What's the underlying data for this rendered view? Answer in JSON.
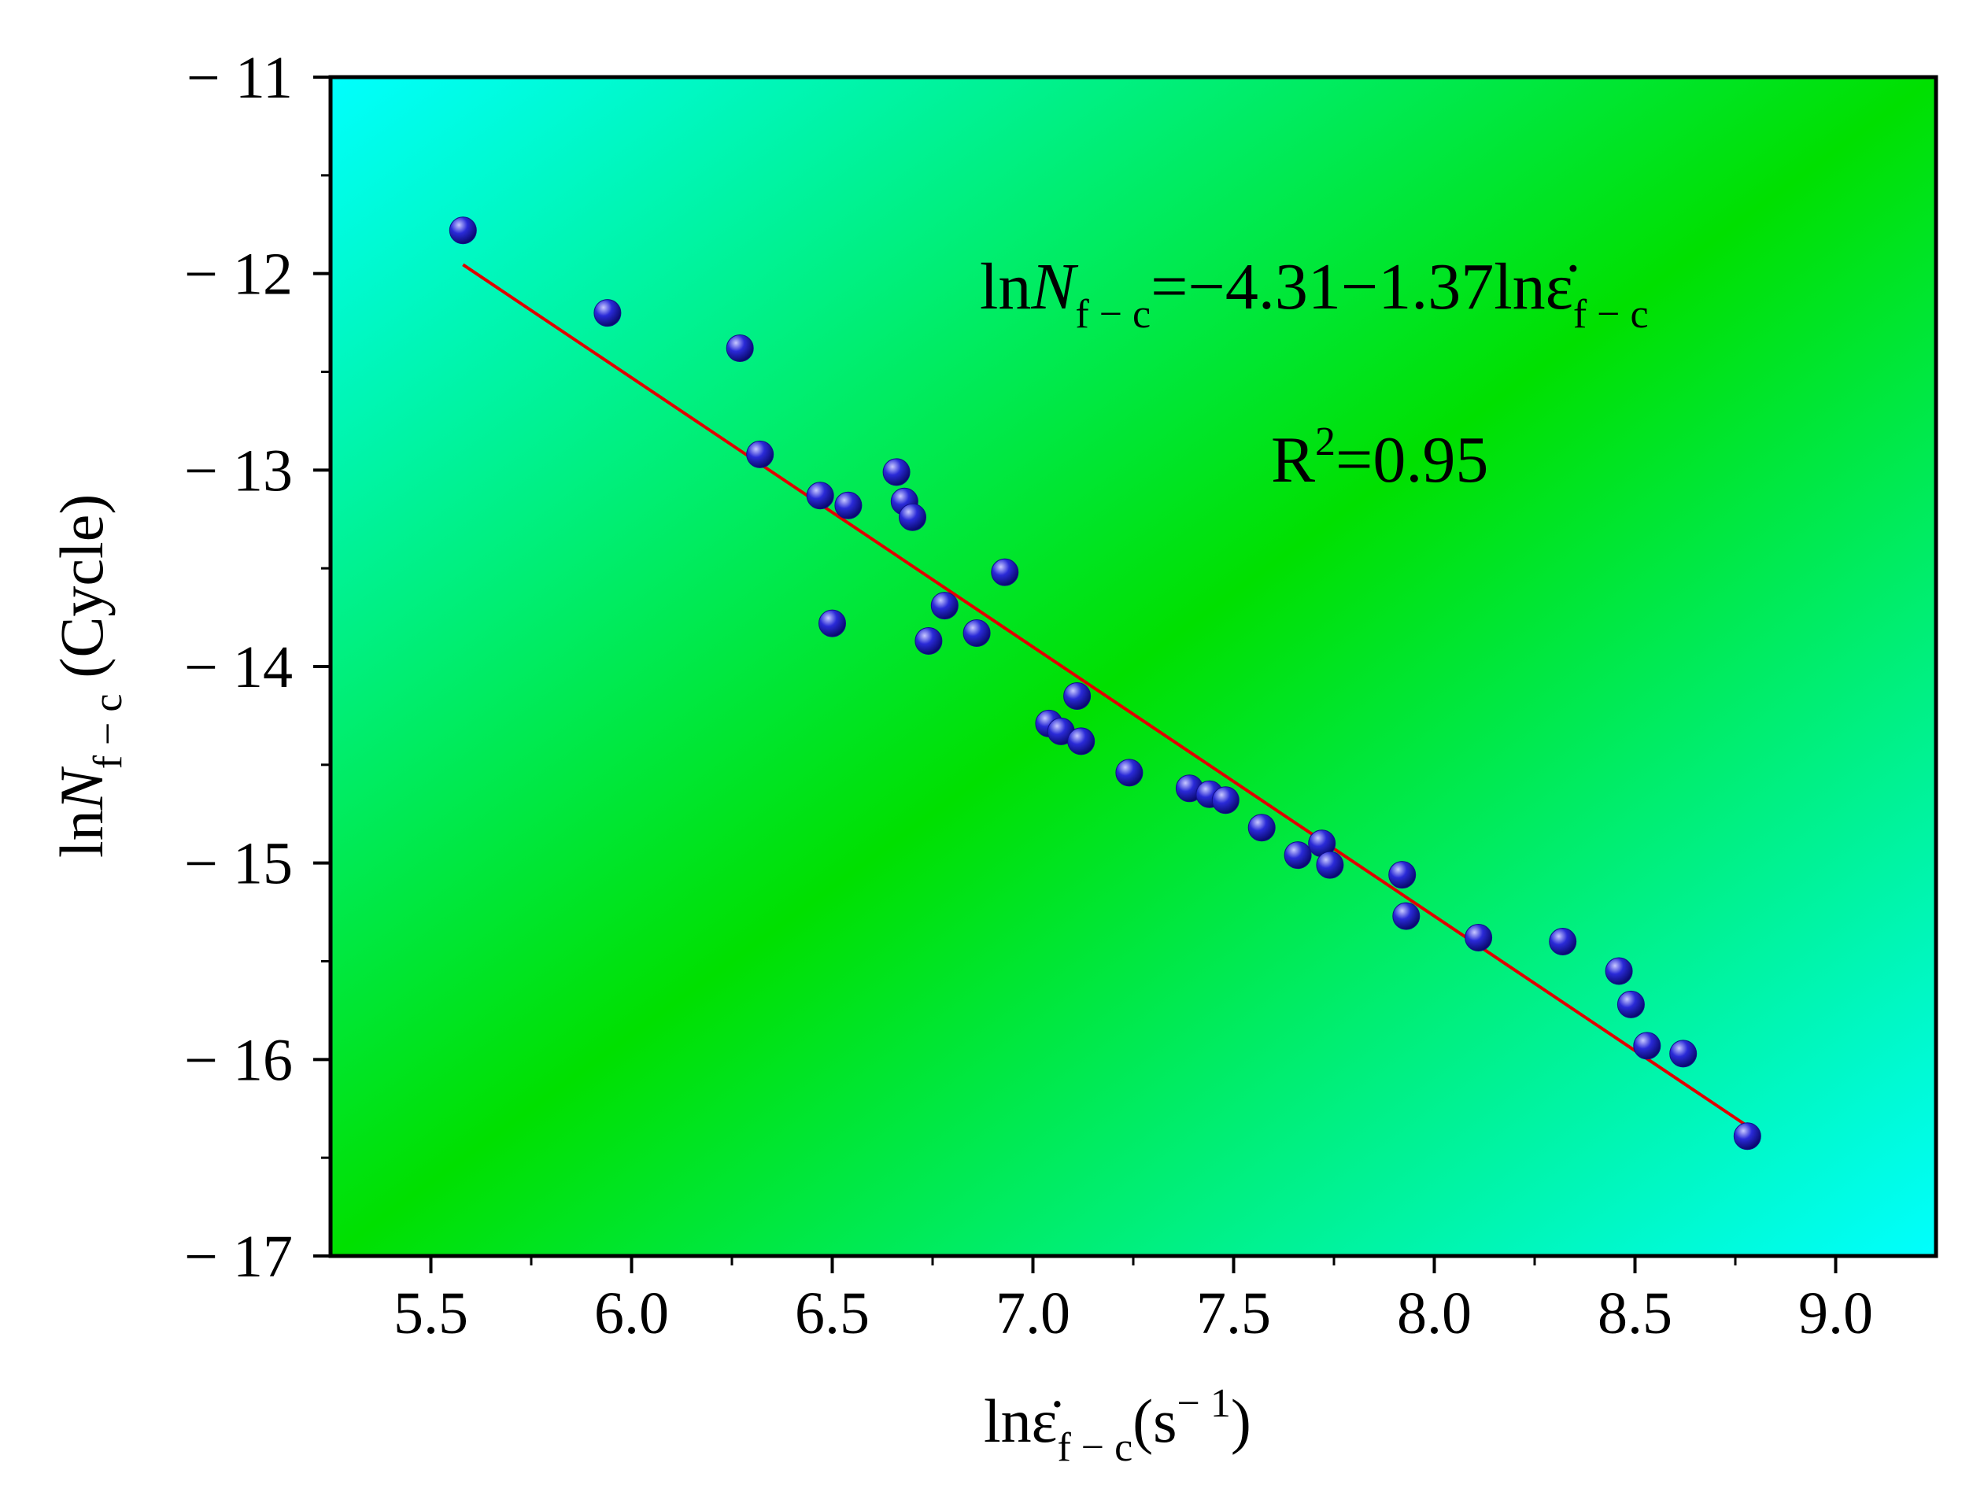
{
  "chart_data": {
    "type": "scatter",
    "title": "",
    "background_gradient": {
      "center": "#00e000",
      "edge": "#00ffff"
    },
    "colors": {
      "point": "#2a2ad8",
      "point_highlight": "#c8c8ff",
      "fit_line": "#e00000",
      "axis": "#000000"
    },
    "xlabel": {
      "base": "lnε̇",
      "sub": "f − c",
      "unit_open": "(s",
      "unit_sup": "− 1",
      "unit_close": ")"
    },
    "ylabel": {
      "base": "ln",
      "var": "N",
      "sub": "f − c",
      "unit": "(Cycle)"
    },
    "xlim": [
      5.25,
      9.25
    ],
    "ylim": [
      -17,
      -11
    ],
    "x_ticks": [
      5.5,
      6.0,
      6.5,
      7.0,
      7.5,
      8.0,
      8.5,
      9.0
    ],
    "x_tick_labels": [
      "5.5",
      "6.0",
      "6.5",
      "7.0",
      "7.5",
      "8.0",
      "8.5",
      "9.0"
    ],
    "y_ticks": [
      -11,
      -12,
      -13,
      -14,
      -15,
      -16,
      -17
    ],
    "y_tick_labels": [
      "− 11",
      "− 12",
      "− 13",
      "− 14",
      "− 15",
      "− 16",
      "− 17"
    ],
    "points": [
      {
        "x": 5.58,
        "y": -11.78
      },
      {
        "x": 5.94,
        "y": -12.2
      },
      {
        "x": 6.27,
        "y": -12.38
      },
      {
        "x": 6.32,
        "y": -12.92
      },
      {
        "x": 6.47,
        "y": -13.13
      },
      {
        "x": 6.54,
        "y": -13.18
      },
      {
        "x": 6.66,
        "y": -13.01
      },
      {
        "x": 6.68,
        "y": -13.16
      },
      {
        "x": 6.7,
        "y": -13.24
      },
      {
        "x": 6.5,
        "y": -13.78
      },
      {
        "x": 6.78,
        "y": -13.69
      },
      {
        "x": 6.74,
        "y": -13.87
      },
      {
        "x": 6.86,
        "y": -13.83
      },
      {
        "x": 6.93,
        "y": -13.52
      },
      {
        "x": 7.11,
        "y": -14.15
      },
      {
        "x": 7.04,
        "y": -14.29
      },
      {
        "x": 7.07,
        "y": -14.33
      },
      {
        "x": 7.12,
        "y": -14.38
      },
      {
        "x": 7.24,
        "y": -14.54
      },
      {
        "x": 7.39,
        "y": -14.62
      },
      {
        "x": 7.44,
        "y": -14.65
      },
      {
        "x": 7.48,
        "y": -14.68
      },
      {
        "x": 7.57,
        "y": -14.82
      },
      {
        "x": 7.66,
        "y": -14.96
      },
      {
        "x": 7.72,
        "y": -14.9
      },
      {
        "x": 7.74,
        "y": -15.01
      },
      {
        "x": 7.92,
        "y": -15.06
      },
      {
        "x": 7.93,
        "y": -15.27
      },
      {
        "x": 8.11,
        "y": -15.38
      },
      {
        "x": 8.32,
        "y": -15.4
      },
      {
        "x": 8.46,
        "y": -15.55
      },
      {
        "x": 8.49,
        "y": -15.72
      },
      {
        "x": 8.53,
        "y": -15.93
      },
      {
        "x": 8.62,
        "y": -15.97
      },
      {
        "x": 8.78,
        "y": -16.39
      }
    ],
    "fit": {
      "intercept": -4.31,
      "slope": -1.37,
      "x_range": [
        5.58,
        8.78
      ]
    },
    "annotations": {
      "equation": {
        "lhs_ln": "ln",
        "lhs_var": "N",
        "lhs_sub": "f − c",
        "middle": "=−4.31−1.37lnε̇",
        "rhs_sub": "f − c"
      },
      "r2": {
        "base": "R",
        "sup": "2",
        "rest": "=0.95"
      }
    }
  }
}
